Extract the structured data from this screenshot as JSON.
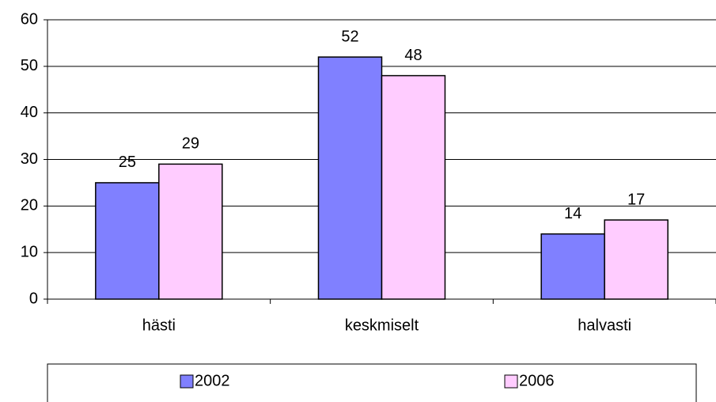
{
  "chart_data": {
    "type": "bar",
    "categories": [
      "hästi",
      "keskmiselt",
      "halvasti"
    ],
    "series": [
      {
        "name": "2002",
        "color": "#8080ff",
        "values": [
          25,
          52,
          14
        ]
      },
      {
        "name": "2006",
        "color": "#ffccff",
        "values": [
          29,
          48,
          17
        ]
      }
    ],
    "ylim": [
      0,
      60
    ],
    "yticks": [
      0,
      10,
      20,
      30,
      40,
      50,
      60
    ],
    "grid": true,
    "legend": "bottom"
  }
}
